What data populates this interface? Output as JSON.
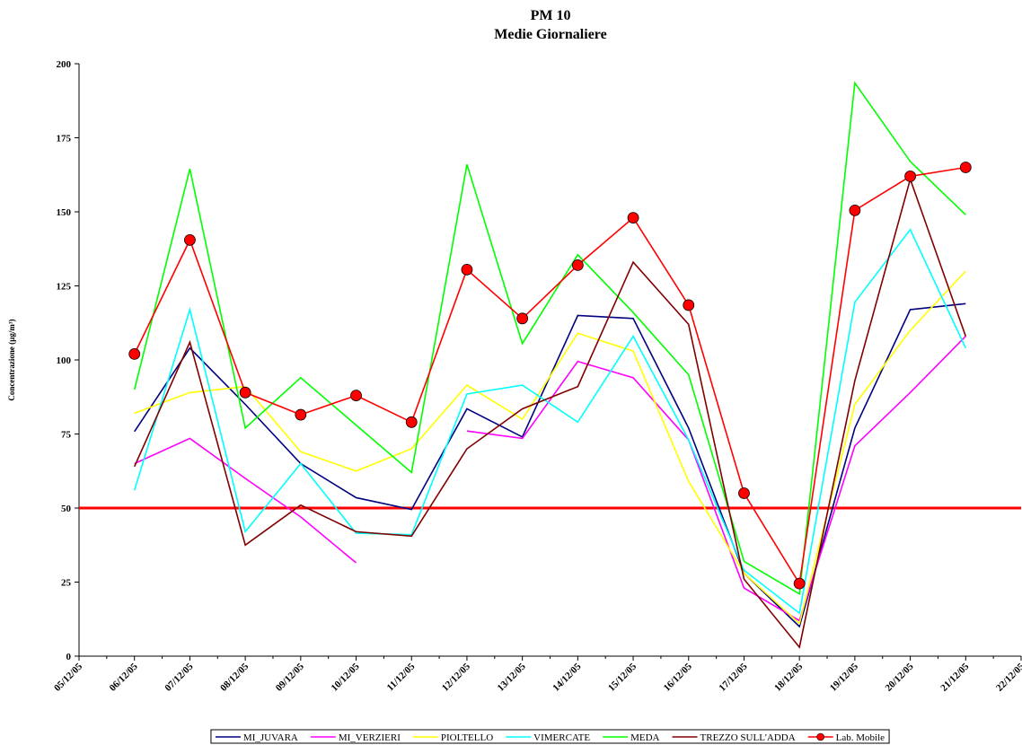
{
  "chart_data": {
    "type": "line",
    "title": "PM 10",
    "subtitle": "Medie Giornaliere",
    "y_label": "Concentrazione (µg/m³)",
    "categories": [
      "05/12/05",
      "06/12/05",
      "07/12/05",
      "08/12/05",
      "09/12/05",
      "10/12/05",
      "11/12/05",
      "12/12/05",
      "13/12/05",
      "14/12/05",
      "15/12/05",
      "16/12/05",
      "17/12/05",
      "18/12/05",
      "19/12/05",
      "20/12/05",
      "21/12/05",
      "22/12/05"
    ],
    "series": [
      {
        "name": "MI_JUVARA",
        "color": "#000080",
        "values": [
          null,
          75.8,
          104,
          85,
          65,
          53.5,
          49.5,
          83.5,
          74,
          115,
          114,
          77,
          28,
          10,
          77,
          117,
          119,
          null
        ]
      },
      {
        "name": "MI_VERZIERI",
        "color": "#ff00ff",
        "values": [
          null,
          65,
          73.5,
          60,
          47,
          31.5,
          null,
          76,
          73.5,
          99.5,
          94,
          73,
          23,
          12,
          71,
          89,
          108,
          null
        ]
      },
      {
        "name": "PIOLTELLO",
        "color": "#ffff00",
        "values": [
          null,
          82,
          89,
          91,
          69,
          62.5,
          70,
          91.5,
          80,
          109,
          103,
          59,
          28,
          11,
          85,
          110,
          130,
          null
        ]
      },
      {
        "name": "VIMERCATE",
        "color": "#00ffff",
        "values": [
          null,
          56,
          117,
          42,
          65,
          41.5,
          41,
          88.5,
          91.5,
          79,
          108,
          73,
          29,
          14.5,
          119.5,
          144,
          104,
          null
        ]
      },
      {
        "name": "MEDA",
        "color": "#00ff00",
        "values": [
          null,
          90,
          164.5,
          77,
          94,
          78,
          62,
          166,
          105.5,
          135.5,
          116,
          95,
          32,
          21,
          193.5,
          167,
          149,
          null
        ]
      },
      {
        "name": "TREZZO SULL'ADDA",
        "color": "#800000",
        "values": [
          null,
          64,
          106,
          37.5,
          51,
          42,
          40.5,
          70,
          83.5,
          91,
          133,
          112,
          26,
          3,
          93,
          161,
          108,
          null
        ]
      },
      {
        "name": "Lab. Mobile",
        "color": "#ff0000",
        "marker": true,
        "values": [
          null,
          102,
          140.5,
          89,
          81.5,
          88,
          79,
          130.5,
          114,
          132,
          148,
          118.5,
          55,
          24.5,
          150.5,
          162,
          165,
          null
        ]
      }
    ],
    "reference_line": {
      "value": 50,
      "color": "#ff0000"
    },
    "ylim": [
      0,
      200
    ],
    "yticks": [
      0,
      25,
      50,
      75,
      100,
      125,
      150,
      175,
      200
    ],
    "legend": "bottom"
  }
}
